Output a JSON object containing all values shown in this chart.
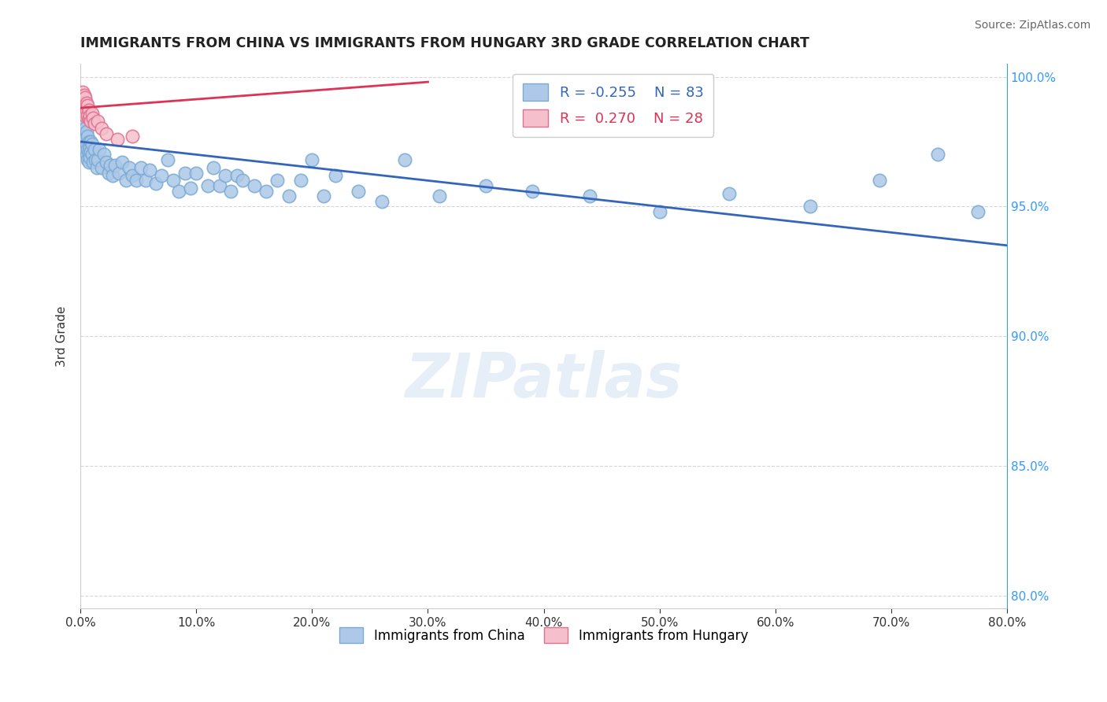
{
  "title": "IMMIGRANTS FROM CHINA VS IMMIGRANTS FROM HUNGARY 3RD GRADE CORRELATION CHART",
  "source": "Source: ZipAtlas.com",
  "ylabel": "3rd Grade",
  "xlim": [
    0.0,
    0.8
  ],
  "ylim": [
    0.795,
    1.005
  ],
  "xticks": [
    0.0,
    0.1,
    0.2,
    0.3,
    0.4,
    0.5,
    0.6,
    0.7,
    0.8
  ],
  "xtick_labels": [
    "0.0%",
    "10.0%",
    "20.0%",
    "30.0%",
    "40.0%",
    "50.0%",
    "60.0%",
    "70.0%",
    "80.0%"
  ],
  "ytick_labels": [
    "80.0%",
    "85.0%",
    "90.0%",
    "95.0%",
    "100.0%"
  ],
  "yticks": [
    0.8,
    0.85,
    0.9,
    0.95,
    1.0
  ],
  "china_color": "#adc8e8",
  "china_edge_color": "#7aaad4",
  "hungary_color": "#f5c0cc",
  "hungary_edge_color": "#e07090",
  "china_line_color": "#3366bb",
  "hungary_line_color": "#dd3355",
  "R_china": -0.255,
  "N_china": 83,
  "R_hungary": 0.27,
  "N_hungary": 28,
  "legend_china": "Immigrants from China",
  "legend_hungary": "Immigrants from Hungary",
  "watermark": "ZIPatlas",
  "china_x": [
    0.001,
    0.001,
    0.002,
    0.002,
    0.003,
    0.003,
    0.003,
    0.004,
    0.004,
    0.004,
    0.005,
    0.005,
    0.005,
    0.006,
    0.006,
    0.006,
    0.007,
    0.007,
    0.007,
    0.008,
    0.008,
    0.009,
    0.009,
    0.01,
    0.01,
    0.011,
    0.012,
    0.013,
    0.014,
    0.015,
    0.016,
    0.018,
    0.02,
    0.022,
    0.024,
    0.026,
    0.028,
    0.03,
    0.033,
    0.036,
    0.039,
    0.042,
    0.045,
    0.048,
    0.052,
    0.056,
    0.06,
    0.065,
    0.07,
    0.075,
    0.08,
    0.085,
    0.09,
    0.095,
    0.1,
    0.11,
    0.115,
    0.12,
    0.125,
    0.13,
    0.135,
    0.14,
    0.15,
    0.16,
    0.17,
    0.18,
    0.19,
    0.2,
    0.21,
    0.22,
    0.24,
    0.26,
    0.28,
    0.31,
    0.35,
    0.39,
    0.44,
    0.5,
    0.56,
    0.63,
    0.69,
    0.74,
    0.775
  ],
  "china_y": [
    0.98,
    0.976,
    0.981,
    0.977,
    0.982,
    0.978,
    0.975,
    0.98,
    0.976,
    0.972,
    0.979,
    0.974,
    0.97,
    0.977,
    0.972,
    0.968,
    0.975,
    0.971,
    0.967,
    0.973,
    0.969,
    0.975,
    0.971,
    0.974,
    0.97,
    0.967,
    0.972,
    0.968,
    0.965,
    0.968,
    0.972,
    0.965,
    0.97,
    0.967,
    0.963,
    0.966,
    0.962,
    0.966,
    0.963,
    0.967,
    0.96,
    0.965,
    0.962,
    0.96,
    0.965,
    0.96,
    0.964,
    0.959,
    0.962,
    0.968,
    0.96,
    0.956,
    0.963,
    0.957,
    0.963,
    0.958,
    0.965,
    0.958,
    0.962,
    0.956,
    0.962,
    0.96,
    0.958,
    0.956,
    0.96,
    0.954,
    0.96,
    0.968,
    0.954,
    0.962,
    0.956,
    0.952,
    0.968,
    0.954,
    0.958,
    0.956,
    0.954,
    0.948,
    0.955,
    0.95,
    0.96,
    0.97,
    0.948
  ],
  "hungary_x": [
    0.001,
    0.001,
    0.001,
    0.002,
    0.002,
    0.002,
    0.003,
    0.003,
    0.003,
    0.004,
    0.004,
    0.004,
    0.005,
    0.005,
    0.006,
    0.006,
    0.007,
    0.007,
    0.008,
    0.009,
    0.01,
    0.011,
    0.012,
    0.015,
    0.018,
    0.022,
    0.032,
    0.045
  ],
  "hungary_y": [
    0.993,
    0.99,
    0.987,
    0.994,
    0.991,
    0.988,
    0.993,
    0.99,
    0.986,
    0.992,
    0.989,
    0.985,
    0.99,
    0.987,
    0.989,
    0.985,
    0.987,
    0.984,
    0.985,
    0.983,
    0.986,
    0.984,
    0.982,
    0.983,
    0.98,
    0.978,
    0.976,
    0.977
  ],
  "china_trendline_x0": 0.0,
  "china_trendline_y0": 0.975,
  "china_trendline_x1": 0.8,
  "china_trendline_y1": 0.935,
  "hungary_trendline_x0": 0.0,
  "hungary_trendline_y0": 0.988,
  "hungary_trendline_x1": 0.3,
  "hungary_trendline_y1": 0.998
}
